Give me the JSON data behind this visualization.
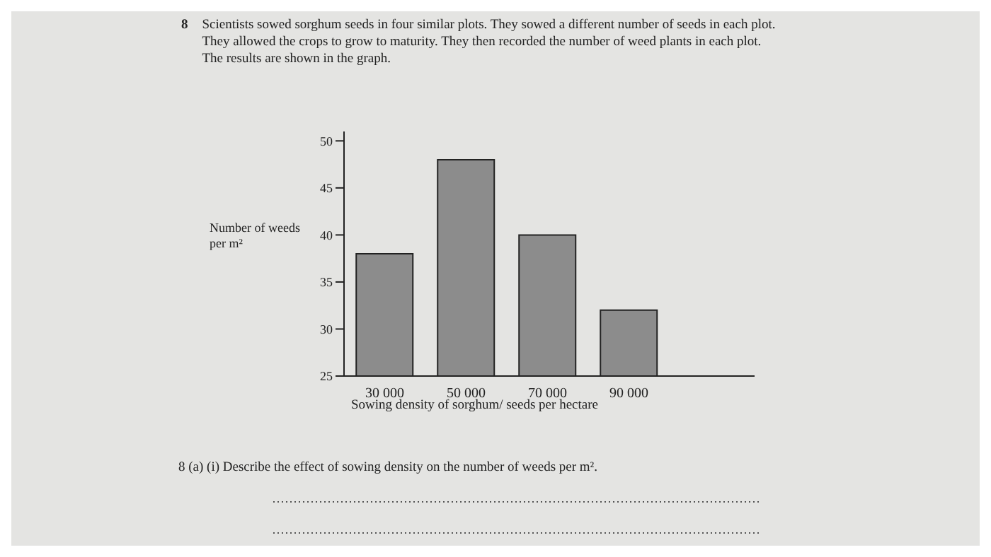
{
  "chart_data": {
    "type": "bar",
    "title": "Scientists sowed sorghum seeds in four similar plots. They sowed a different number of seeds in each plot. They allowed the crops to grow to maturity. They then recorded the number of weed plants in each plot. The results are shown in the graph.",
    "xlabel": "Sowing density of sorghum/ seeds per hectare",
    "ylabel": "Number of weeds per m²",
    "categories": [
      "30 000",
      "50 000",
      "70 000",
      "90 000"
    ],
    "values": [
      38,
      48,
      40,
      32
    ],
    "color": "#8c8c8c",
    "ylim": [
      25,
      51
    ],
    "yticks": [
      25,
      30,
      35,
      40,
      45,
      50
    ],
    "annotations": [
      "8",
      "8 (a) (i) Describe the effect of sowing density on the number of weeds per m²."
    ]
  }
}
